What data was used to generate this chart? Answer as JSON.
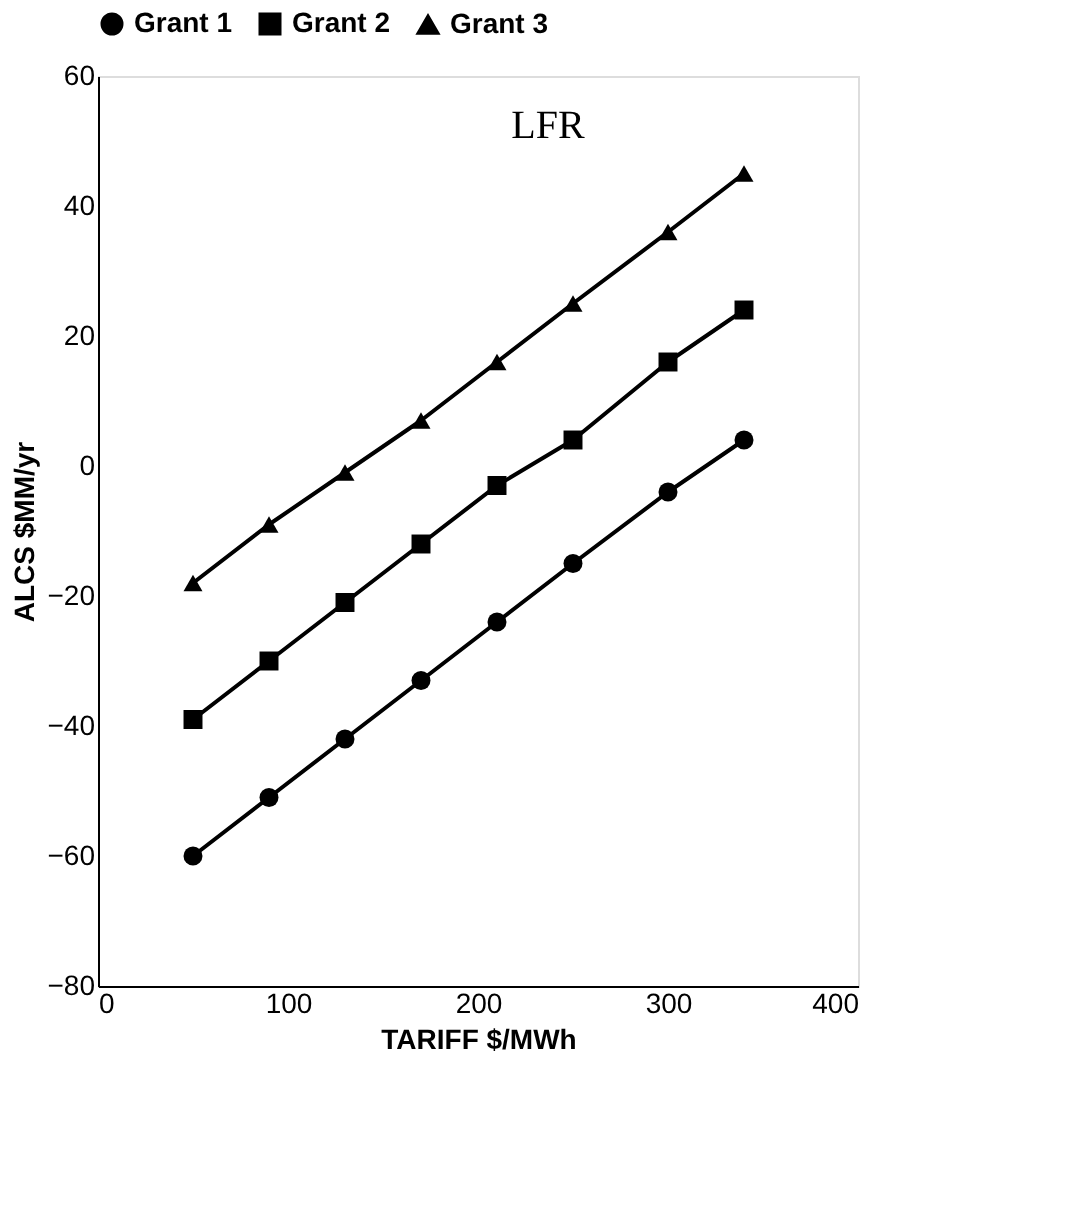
{
  "chart_data": {
    "type": "line",
    "xlabel": "TARIFF  $/MWh",
    "ylabel": "ALCS  $MM/yr",
    "x": [
      50,
      90,
      130,
      170,
      210,
      250,
      300,
      340
    ],
    "series": [
      {
        "name": "Grant 1",
        "color": "#000000",
        "marker": "circle",
        "values": [
          -60,
          -51,
          -42,
          -33,
          -24,
          -15,
          -4,
          4
        ]
      },
      {
        "name": "Grant 2",
        "color": "#000000",
        "marker": "square",
        "values": [
          -39,
          -30,
          -21,
          -12,
          -3,
          4,
          16,
          24
        ]
      },
      {
        "name": "Grant 3",
        "color": "#000000",
        "marker": "triangle",
        "values": [
          -18,
          -9,
          -1,
          7,
          16,
          25,
          36,
          45
        ]
      }
    ],
    "xlim": [
      0,
      400
    ],
    "xticks": [
      0,
      100,
      200,
      300,
      400
    ],
    "ylim": [
      -80,
      60
    ],
    "yticks": [
      -80,
      -60,
      -40,
      -20,
      0,
      20,
      40,
      60
    ],
    "annotations": [
      "LFR"
    ],
    "grid": false,
    "legend": "top",
    "line_style": "solid"
  }
}
